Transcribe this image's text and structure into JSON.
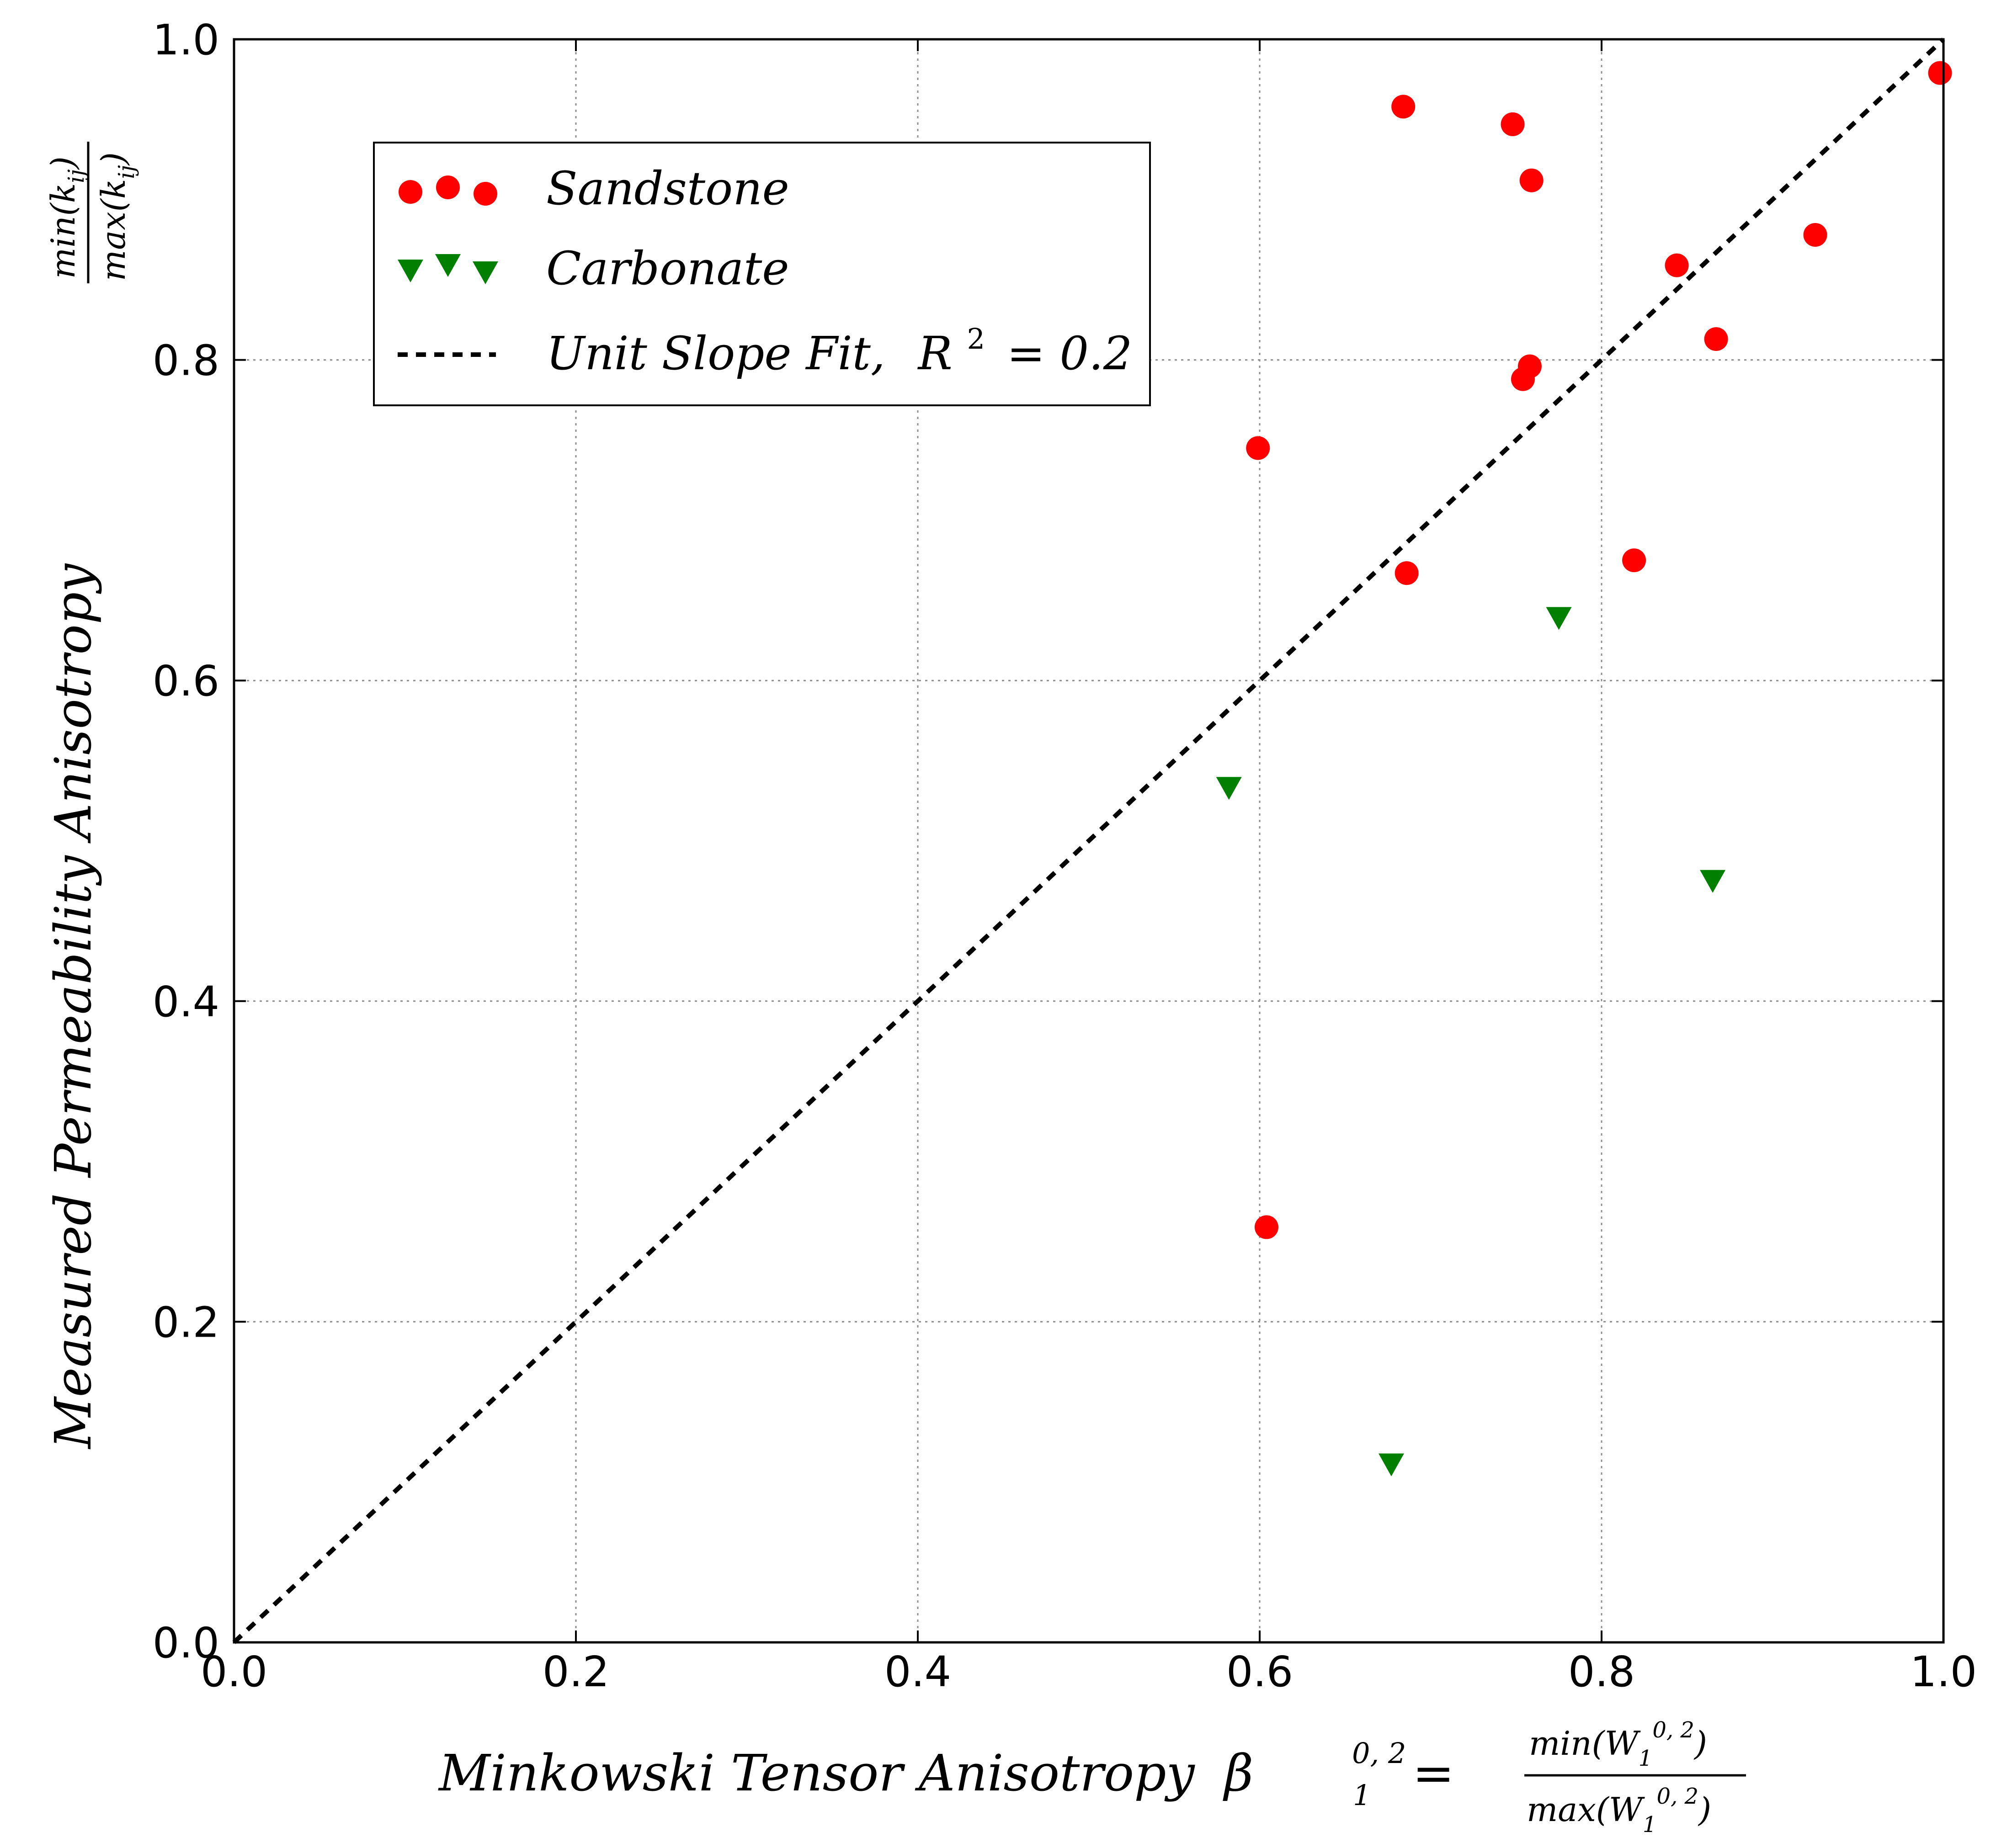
{
  "chart_data": {
    "type": "scatter",
    "xlabel": "Minkowski Tensor Anisotropy",
    "xlabel_symbol": "β",
    "xlabel_subscript": "1",
    "xlabel_superscript": "0, 2",
    "xlabel_fraction_numerator": "min(W",
    "xlabel_fraction_denominator": "max(W",
    "ylabel": "Measured Permeability Anisotropy",
    "ylabel_fraction_numerator": "min(k",
    "ylabel_fraction_denominator": "max(k",
    "ylabel_subscript": "ij",
    "xlim": [
      0.0,
      1.0
    ],
    "ylim": [
      0.0,
      1.0
    ],
    "xticks": [
      0.0,
      0.2,
      0.4,
      0.6,
      0.8,
      1.0
    ],
    "yticks": [
      0.0,
      0.2,
      0.4,
      0.6,
      0.8,
      1.0
    ],
    "xtick_labels": [
      "0.0",
      "0.2",
      "0.4",
      "0.6",
      "0.8",
      "1.0"
    ],
    "ytick_labels": [
      "0.0",
      "0.2",
      "0.4",
      "0.6",
      "0.8",
      "1.0"
    ],
    "grid": true,
    "legend_position": "upper-left",
    "series": [
      {
        "name": "Sandstone",
        "marker": "circle",
        "color": "#ff0000",
        "points": [
          [
            0.684,
            0.958
          ],
          [
            0.748,
            0.947
          ],
          [
            0.759,
            0.912
          ],
          [
            0.998,
            0.979
          ],
          [
            0.925,
            0.878
          ],
          [
            0.844,
            0.859
          ],
          [
            0.867,
            0.813
          ],
          [
            0.758,
            0.796
          ],
          [
            0.754,
            0.788
          ],
          [
            0.599,
            0.745
          ],
          [
            0.686,
            0.667
          ],
          [
            0.819,
            0.675
          ],
          [
            0.604,
            0.259
          ]
        ]
      },
      {
        "name": "Carbonate",
        "marker": "triangle-down",
        "color": "#007f00",
        "points": [
          [
            0.775,
            0.639
          ],
          [
            0.582,
            0.533
          ],
          [
            0.865,
            0.475
          ],
          [
            0.677,
            0.111
          ]
        ]
      },
      {
        "name": "Unit Slope Fit,",
        "r2_label": "R",
        "r2_exponent": "2",
        "r2_value": "= 0.2",
        "type": "line",
        "style": "dashed",
        "color": "#000000",
        "points": [
          [
            0.0,
            0.0
          ],
          [
            1.0,
            1.0
          ]
        ]
      }
    ]
  }
}
